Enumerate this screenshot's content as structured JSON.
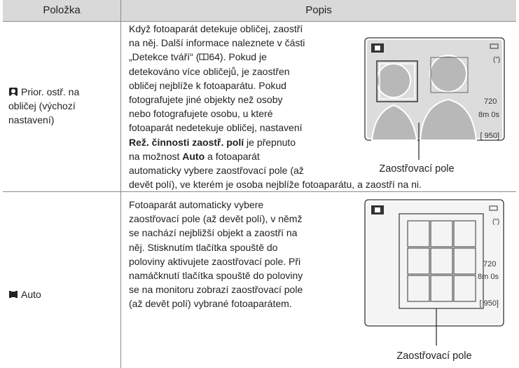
{
  "header": {
    "item": "Položka",
    "description": "Popis"
  },
  "rows": [
    {
      "icon": "face",
      "item_lines": [
        "Prior. ostř. na",
        "obličej (výchozí",
        "nastavení)"
      ],
      "description_lines": [
        [
          "Když fotoaparát detekuje obličej, zaostří"
        ],
        [
          "na něj. Další informace naleznete v části"
        ],
        [
          "„Detekce tváří“ (",
          {
            "icon": "book"
          },
          "64). Pokud je"
        ],
        [
          "detekováno více obličejů, je zaostřen"
        ],
        [
          "obličej nejblíže k fotoaparátu. Pokud"
        ],
        [
          "fotografujete jiné objekty než osoby"
        ],
        [
          "nebo fotografujete osobu, u které"
        ],
        [
          "fotoaparát nedetekuje obličej, nastavení"
        ],
        [
          {
            "text": "Rež. činnosti zaostř. polí",
            "bold": true
          },
          " je přepnuto"
        ],
        [
          "na možnost ",
          {
            "text": "Auto",
            "bold": true
          },
          " a fotoaparát"
        ],
        [
          "automaticky vybere zaostřovací pole (až"
        ],
        [
          "devět polí), ve kterém je osoba nejblíže fotoaparátu, a zaostří na ni."
        ]
      ],
      "illustration": {
        "kind": "face",
        "screen_texts": [
          "720",
          "8m 0s",
          "[ 950]"
        ],
        "caption": "Zaostřovací pole"
      }
    },
    {
      "icon": "auto",
      "item_lines": [
        "Auto"
      ],
      "description_lines": [
        [
          "Fotoaparát automaticky vybere"
        ],
        [
          "zaostřovací pole (až devět polí), v němž"
        ],
        [
          "se nachází nejbližší objekt a zaostří na"
        ],
        [
          "něj. Stisknutím tlačítka spouště do"
        ],
        [
          "poloviny aktivujete zaostřovací pole. Při"
        ],
        [
          "namáčknutí tlačítka spouště do poloviny"
        ],
        [
          "se na monitoru zobrazí zaostřovací pole"
        ],
        [
          "(až devět polí) vybrané fotoaparátem."
        ]
      ],
      "illustration": {
        "kind": "grid",
        "screen_texts": [
          "720",
          "8m 0s",
          "[ 950]"
        ],
        "caption": "Zaostřovací pole"
      }
    }
  ]
}
